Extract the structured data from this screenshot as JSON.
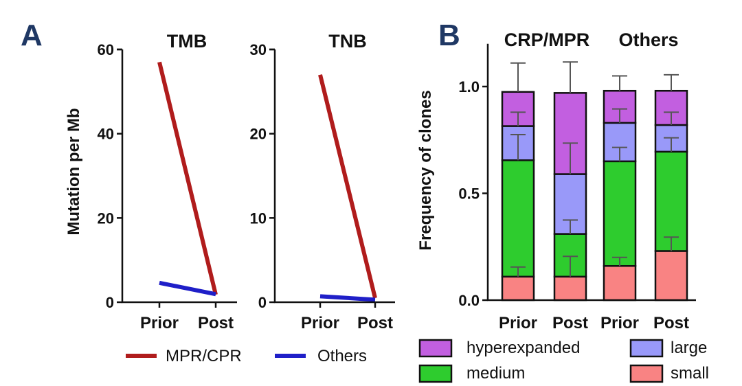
{
  "panels": {
    "a_label": "A",
    "b_label": "B"
  },
  "chart_data": [
    {
      "type": "line",
      "title": "TMB",
      "ylabel": "Mutation per Mb",
      "categories": [
        "Prior",
        "Post"
      ],
      "ylim": [
        0,
        60
      ],
      "yticks": [
        0,
        20,
        40,
        60
      ],
      "series": [
        {
          "name": "MPR/CPR",
          "values": [
            57,
            1.8
          ],
          "color": "#b01c1c"
        },
        {
          "name": "Others",
          "values": [
            4.6,
            1.9
          ],
          "color": "#1f1fc8"
        }
      ]
    },
    {
      "type": "line",
      "title": "TNB",
      "categories": [
        "Prior",
        "Post"
      ],
      "ylim": [
        0,
        30
      ],
      "yticks": [
        0,
        10,
        20,
        30
      ],
      "series": [
        {
          "name": "MPR/CPR",
          "values": [
            27,
            0.5
          ],
          "color": "#b01c1c"
        },
        {
          "name": "Others",
          "values": [
            0.7,
            0.3
          ],
          "color": "#1f1fc8"
        }
      ]
    },
    {
      "type": "bar",
      "stacked": true,
      "ylabel": "Frequency of clones",
      "group_labels": [
        "CRP/MPR",
        "Others"
      ],
      "categories": [
        "Prior",
        "Post",
        "Prior",
        "Post"
      ],
      "ylim": [
        0,
        1.2
      ],
      "yticks": [
        "0.0",
        "0.5",
        "1.0"
      ],
      "series": [
        {
          "name": "small",
          "values": [
            0.11,
            0.11,
            0.16,
            0.23
          ],
          "errors": [
            0.045,
            0.095,
            0.04,
            0.065
          ],
          "color": "#f98383"
        },
        {
          "name": "medium",
          "values": [
            0.545,
            0.2,
            0.49,
            0.465
          ],
          "errors": [
            0.12,
            0.065,
            0.065,
            0.065
          ],
          "color": "#2ecc2e"
        },
        {
          "name": "large",
          "values": [
            0.16,
            0.28,
            0.18,
            0.125
          ],
          "errors": [
            0.065,
            0.145,
            0.065,
            0.06
          ],
          "color": "#9999f9"
        },
        {
          "name": "hyperexpanded",
          "values": [
            0.16,
            0.38,
            0.15,
            0.16
          ],
          "errors": [
            0.135,
            0.145,
            0.07,
            0.075
          ],
          "color": "#c25fe0"
        }
      ],
      "legend_order": [
        "hyperexpanded",
        "large",
        "medium",
        "small"
      ],
      "legend_position": "bottom"
    }
  ]
}
